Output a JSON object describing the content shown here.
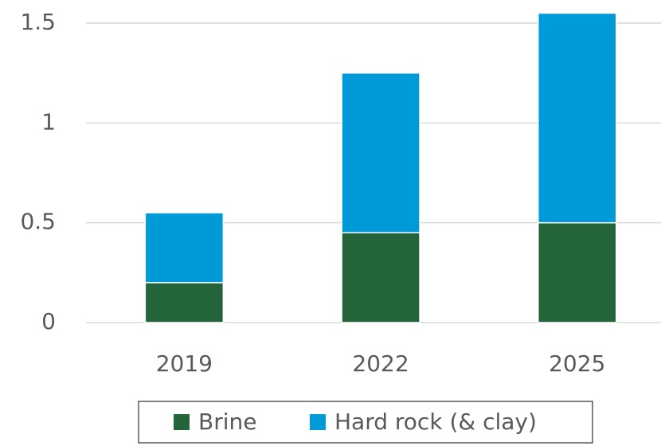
{
  "chart_data": {
    "type": "bar",
    "stacked": true,
    "categories": [
      "2019",
      "2022",
      "2025"
    ],
    "series": [
      {
        "name": "Brine",
        "color": "#23643a",
        "values": [
          0.2,
          0.45,
          0.5
        ]
      },
      {
        "name": "Hard rock (& clay)",
        "color": "#009ad9",
        "values": [
          0.35,
          0.8,
          1.05
        ]
      }
    ],
    "ylim": [
      0,
      1.55
    ],
    "yticks": [
      0,
      0.5,
      1,
      1.5
    ],
    "grid": true,
    "legend": "bottom"
  }
}
